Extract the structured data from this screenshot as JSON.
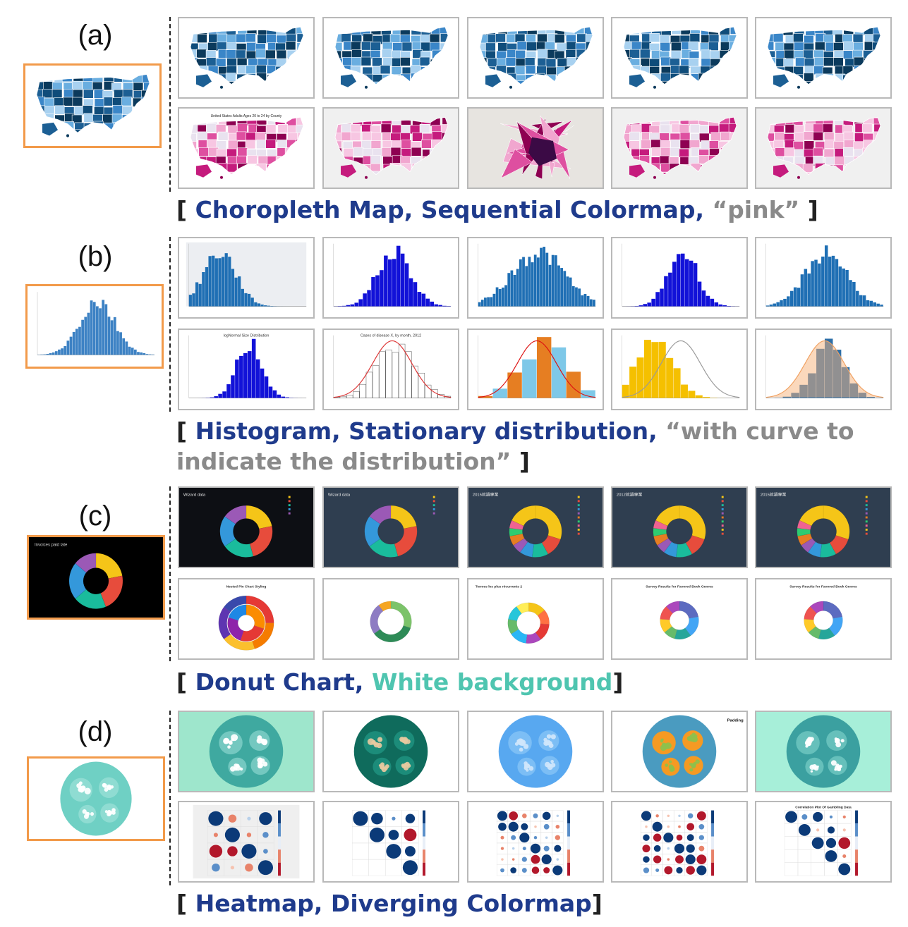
{
  "panels": [
    {
      "label": "(a)",
      "chart_type": "choropleth",
      "caption": {
        "open": "[ ",
        "chart": "Choropleth Map, Sequential Colormap,",
        "q": " “pink”",
        "close": " ]"
      }
    },
    {
      "label": "(b)",
      "chart_type": "histogram",
      "caption": {
        "open": "[ ",
        "chart": "Histogram, Stationary distribution,",
        "q": " “with curve to indicate the distribution”",
        "close": " ]"
      }
    },
    {
      "label": "(c)",
      "chart_type": "donut",
      "caption": {
        "open": "[ ",
        "chart": "Donut Chart,",
        "q": " White background",
        "close": "]"
      }
    },
    {
      "label": "(d)",
      "chart_type": "heatmap",
      "caption": {
        "open": "[ ",
        "chart": "Heatmap, Diverging Colormap",
        "q": "",
        "close": "]"
      }
    }
  ],
  "thumb_texts": {
    "map_title": "United States Adults Ages 20 to 24 by County",
    "hist_title_1": "logNormal Size Distribution",
    "hist_title_2": "Cases of disease X, by month, 2012",
    "donut_title_1": "Wizard data",
    "donut_title_2": "Wizard data",
    "donut_title_3": "2015就讀專業",
    "donut_title_4": "2012就讀專業",
    "donut_title_5": "2015就讀專業",
    "donut_title_6": "Nested Pie Chart Styling",
    "donut_title_7": "Termes les plus récurrents 2",
    "donut_title_8": "Survey Results for Favored Book Genres",
    "donut_title_9": "Survey Results for Favored Book Genres",
    "query_donut_title": "Invoices paid late",
    "pack_label": "Padding",
    "corr_title": "Correlation Plot Of Gambling Data"
  },
  "colors": {
    "blue_dark": "#0b3a5c",
    "blue_mid": "#3a86c8",
    "blue_light": "#a8d1f0",
    "pink_dark": "#8e0152",
    "pink_mid": "#de4fa0",
    "pink_light": "#f7c6e2",
    "hist_blue": "#1f6fb4",
    "hist_royal": "#1212d8",
    "teal": "#6fd0c4",
    "caption_blue": "#1f3b8c",
    "caption_gray": "#8a8a8a",
    "caption_teal": "#4fc5b0",
    "query_border": "#f29a4a"
  }
}
